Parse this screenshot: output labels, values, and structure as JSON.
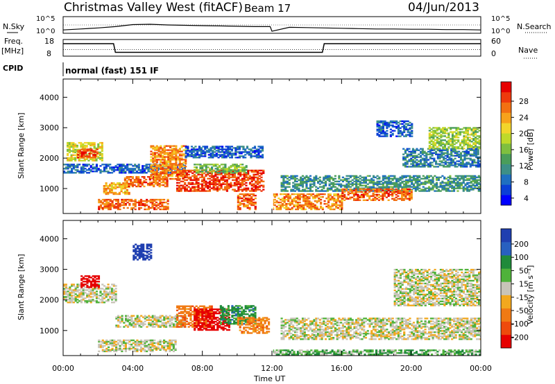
{
  "header": {
    "station": "Christmas Valley West (fitACF)",
    "beam": "Beam 17",
    "date": "04/Jun/2013"
  },
  "noise_panel": {
    "left_label": "N.Sky",
    "right_label": "N.Search",
    "left_ticks": [
      "10^5",
      "10^0"
    ],
    "right_ticks": [
      "10^5",
      "10^0"
    ]
  },
  "freq_panel": {
    "left_label_1": "Freq.",
    "left_label_2": "[MHz]",
    "right_label": "Nave",
    "left_ticks": [
      "18",
      "8"
    ],
    "right_ticks": [
      "60",
      "0"
    ]
  },
  "cpid": {
    "label": "CPID",
    "value": "normal (fast) 151 IF"
  },
  "xaxis": {
    "title": "Time UT",
    "ticks": [
      "00:00",
      "04:00",
      "08:00",
      "12:00",
      "16:00",
      "20:00",
      "00:00"
    ]
  },
  "power_panel": {
    "ylabel": "Slant Range [km]",
    "yticks": [
      "1000",
      "2000",
      "3000",
      "4000"
    ],
    "colorbar_title": "Power [dB]",
    "colorbar_ticks": [
      "28",
      "24",
      "20",
      "16",
      "12",
      "8",
      "4"
    ]
  },
  "velocity_panel": {
    "ylabel": "Slant Range [km]",
    "yticks": [
      "1000",
      "2000",
      "3000",
      "4000"
    ],
    "colorbar_title": "Velocity [m s⁻¹]",
    "colorbar_ticks": [
      "200",
      "100",
      "50",
      "15",
      "-15",
      "-50",
      "-100",
      "-200"
    ]
  },
  "colors": {
    "power_scale": [
      "#0000ff",
      "#0b3fd6",
      "#1f6fc0",
      "#3d8f86",
      "#4a9d5a",
      "#7fbf3f",
      "#bfd92a",
      "#f2d52b",
      "#f7a21b",
      "#f27012",
      "#ee3a0c",
      "#e60000"
    ],
    "velocity_scale": [
      "#1f3fb0",
      "#2860c0",
      "#1f8a3a",
      "#4fb23a",
      "#c8c4b8",
      "#f2a81e",
      "#f07a14",
      "#ee4a0c",
      "#e60000"
    ]
  },
  "chart_data": [
    {
      "type": "line",
      "title": "N.Sky / N.Search",
      "xlabel": "",
      "ylabel": "",
      "x_hours": [
        0,
        1,
        2,
        3,
        4,
        5,
        6,
        7,
        8,
        9,
        10,
        11,
        11.9,
        12,
        13,
        14,
        15,
        16,
        17,
        18,
        19,
        20,
        21,
        22,
        23,
        24
      ],
      "series": [
        {
          "name": "N.Sky",
          "values_log10": [
            1.0,
            1.3,
            1.6,
            2.0,
            2.6,
            2.7,
            2.5,
            2.4,
            2.3,
            2.2,
            2.1,
            2.0,
            2.0,
            0.6,
            1.8,
            1.7,
            1.6,
            1.5,
            1.4,
            1.3,
            1.3,
            1.2,
            1.2,
            1.1,
            1.1,
            1.0
          ]
        }
      ],
      "ylim_log10": [
        0,
        5
      ]
    },
    {
      "type": "line",
      "title": "Freq. / Nave",
      "xlabel": "",
      "ylabel": "",
      "x_hours": [
        0,
        2.9,
        3.0,
        11.9,
        12.0,
        14.9,
        15.0,
        24
      ],
      "series": [
        {
          "name": "Freq.",
          "values": [
            15.5,
            15.5,
            10.3,
            10.3,
            10.3,
            10.3,
            15.5,
            15.5
          ]
        },
        {
          "name": "Nave",
          "values": [
            24,
            24,
            24,
            24,
            24,
            24,
            24,
            24
          ]
        }
      ],
      "ylim_freq": [
        8,
        18
      ],
      "ylim_nave": [
        0,
        60
      ]
    },
    {
      "type": "heatmap",
      "title": "Power",
      "xlabel": "Time UT",
      "ylabel": "Slant Range [km]",
      "xlim_hours": [
        0,
        24
      ],
      "ylim_km": [
        180,
        4600
      ],
      "zlim_db": [
        0,
        32
      ],
      "features": [
        {
          "t0": 0.2,
          "t1": 2.2,
          "r0": 1900,
          "r1": 2500,
          "db": 18
        },
        {
          "t0": 0.8,
          "t1": 2.0,
          "r0": 2000,
          "r1": 2300,
          "db": 28
        },
        {
          "t0": 0.0,
          "t1": 7.0,
          "r0": 1500,
          "r1": 1800,
          "db": 6
        },
        {
          "t0": 2.0,
          "t1": 6.0,
          "r0": 300,
          "r1": 650,
          "db": 26
        },
        {
          "t0": 2.3,
          "t1": 3.8,
          "r0": 800,
          "r1": 1200,
          "db": 22
        },
        {
          "t0": 3.5,
          "t1": 6.0,
          "r0": 1050,
          "r1": 1400,
          "db": 26
        },
        {
          "t0": 5.0,
          "t1": 7.0,
          "r0": 1300,
          "r1": 2400,
          "db": 24
        },
        {
          "t0": 6.5,
          "t1": 11.5,
          "r0": 900,
          "r1": 1600,
          "db": 28
        },
        {
          "t0": 7.5,
          "t1": 10.5,
          "r0": 1500,
          "r1": 1800,
          "db": 14
        },
        {
          "t0": 7.0,
          "t1": 11.5,
          "r0": 2000,
          "r1": 2400,
          "db": 6
        },
        {
          "t0": 10.0,
          "t1": 11.0,
          "r0": 300,
          "r1": 800,
          "db": 26
        },
        {
          "t0": 12.0,
          "t1": 16.0,
          "r0": 300,
          "r1": 800,
          "db": 24
        },
        {
          "t0": 12.5,
          "t1": 24.0,
          "r0": 900,
          "r1": 1400,
          "db": 10
        },
        {
          "t0": 16.0,
          "t1": 20.0,
          "r0": 600,
          "r1": 1000,
          "db": 26
        },
        {
          "t0": 19.5,
          "t1": 24.0,
          "r0": 1700,
          "r1": 2300,
          "db": 8
        },
        {
          "t0": 21.0,
          "t1": 24.0,
          "r0": 2300,
          "r1": 3000,
          "db": 16
        },
        {
          "t0": 18.0,
          "t1": 20.0,
          "r0": 2700,
          "r1": 3200,
          "db": 6
        }
      ]
    },
    {
      "type": "heatmap",
      "title": "Velocity",
      "xlabel": "Time UT",
      "ylabel": "Slant Range [km]",
      "xlim_hours": [
        0,
        24
      ],
      "ylim_km": [
        180,
        4600
      ],
      "zlim_ms": [
        -250,
        250
      ],
      "features": [
        {
          "t0": 0.0,
          "t1": 3.0,
          "r0": 1900,
          "r1": 2500,
          "v": 0
        },
        {
          "t0": 1.0,
          "t1": 2.0,
          "r0": 2400,
          "r1": 2800,
          "v": -200
        },
        {
          "t0": 2.0,
          "t1": 6.5,
          "r0": 300,
          "r1": 700,
          "v": 0
        },
        {
          "t0": 3.0,
          "t1": 7.0,
          "r0": 1100,
          "r1": 1500,
          "v": 0
        },
        {
          "t0": 6.5,
          "t1": 8.5,
          "r0": 1100,
          "r1": 1800,
          "v": -60
        },
        {
          "t0": 7.5,
          "t1": 9.5,
          "r0": 1000,
          "r1": 1700,
          "v": -200
        },
        {
          "t0": 9.0,
          "t1": 11.0,
          "r0": 1200,
          "r1": 1800,
          "v": 50
        },
        {
          "t0": 10.0,
          "t1": 11.8,
          "r0": 900,
          "r1": 1400,
          "v": -50
        },
        {
          "t0": 12.0,
          "t1": 24.0,
          "r0": 200,
          "r1": 350,
          "v": 30
        },
        {
          "t0": 12.5,
          "t1": 24.0,
          "r0": 700,
          "r1": 1400,
          "v": 0
        },
        {
          "t0": 19.0,
          "t1": 24.0,
          "r0": 1800,
          "r1": 3000,
          "v": 0
        },
        {
          "t0": 4.0,
          "t1": 5.0,
          "r0": 3300,
          "r1": 3800,
          "v": 200
        }
      ]
    }
  ]
}
